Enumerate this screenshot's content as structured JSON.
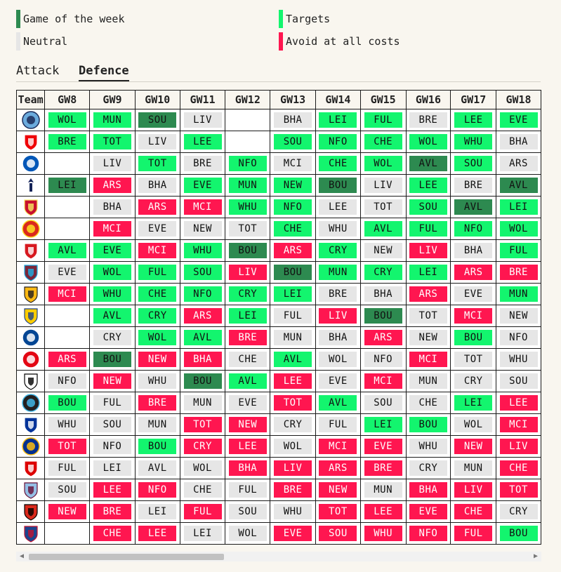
{
  "legend": [
    {
      "label": "Game of the week",
      "color": "#2d8a50"
    },
    {
      "label": "Targets",
      "color": "#13f56e"
    },
    {
      "label": "Neutral",
      "color": "#e6e6e6"
    },
    {
      "label": "Avoid at all costs",
      "color": "#ff1650"
    }
  ],
  "tabs": [
    {
      "label": "Attack",
      "active": false
    },
    {
      "label": "Defence",
      "active": true
    }
  ],
  "table": {
    "team_header": "Team",
    "gameweeks": [
      "GW8",
      "GW9",
      "GW10",
      "GW11",
      "GW12",
      "GW13",
      "GW14",
      "GW15",
      "GW16",
      "GW17",
      "GW18"
    ],
    "rows": [
      {
        "crest": "man-city-crest",
        "cells": [
          [
            "WOL",
            "target"
          ],
          [
            "MUN",
            "target"
          ],
          [
            "SOU",
            "gotw"
          ],
          [
            "LIV",
            "neutral"
          ],
          [
            "",
            ""
          ],
          [
            "BHA",
            "neutral"
          ],
          [
            "LEI",
            "target"
          ],
          [
            "FUL",
            "target"
          ],
          [
            "BRE",
            "neutral"
          ],
          [
            "LEE",
            "target"
          ],
          [
            "EVE",
            "target"
          ]
        ]
      },
      {
        "crest": "arsenal-crest",
        "cells": [
          [
            "BRE",
            "target"
          ],
          [
            "TOT",
            "target"
          ],
          [
            "LIV",
            "neutral"
          ],
          [
            "LEE",
            "target"
          ],
          [
            "",
            ""
          ],
          [
            "SOU",
            "target"
          ],
          [
            "NFO",
            "target"
          ],
          [
            "CHE",
            "target"
          ],
          [
            "WOL",
            "target"
          ],
          [
            "WHU",
            "target"
          ],
          [
            "BHA",
            "neutral"
          ]
        ]
      },
      {
        "crest": "brighton-crest",
        "cells": [
          [
            "",
            ""
          ],
          [
            "LIV",
            "neutral"
          ],
          [
            "TOT",
            "target"
          ],
          [
            "BRE",
            "neutral"
          ],
          [
            "NFO",
            "target"
          ],
          [
            "MCI",
            "neutral"
          ],
          [
            "CHE",
            "target"
          ],
          [
            "WOL",
            "target"
          ],
          [
            "AVL",
            "gotw"
          ],
          [
            "SOU",
            "target"
          ],
          [
            "ARS",
            "neutral"
          ]
        ]
      },
      {
        "crest": "tottenham-crest",
        "cells": [
          [
            "LEI",
            "gotw"
          ],
          [
            "ARS",
            "avoid"
          ],
          [
            "BHA",
            "neutral"
          ],
          [
            "EVE",
            "target"
          ],
          [
            "MUN",
            "target"
          ],
          [
            "NEW",
            "target"
          ],
          [
            "BOU",
            "gotw"
          ],
          [
            "LIV",
            "neutral"
          ],
          [
            "LEE",
            "target"
          ],
          [
            "BRE",
            "neutral"
          ],
          [
            "AVL",
            "gotw"
          ]
        ]
      },
      {
        "crest": "liverpool-crest",
        "cells": [
          [
            "",
            ""
          ],
          [
            "BHA",
            "neutral"
          ],
          [
            "ARS",
            "avoid"
          ],
          [
            "MCI",
            "avoid"
          ],
          [
            "WHU",
            "target"
          ],
          [
            "NFO",
            "target"
          ],
          [
            "LEE",
            "neutral"
          ],
          [
            "TOT",
            "neutral"
          ],
          [
            "SOU",
            "target"
          ],
          [
            "AVL",
            "gotw"
          ],
          [
            "LEI",
            "target"
          ]
        ]
      },
      {
        "crest": "man-utd-crest",
        "cells": [
          [
            "",
            ""
          ],
          [
            "MCI",
            "avoid"
          ],
          [
            "EVE",
            "neutral"
          ],
          [
            "NEW",
            "neutral"
          ],
          [
            "TOT",
            "neutral"
          ],
          [
            "CHE",
            "target"
          ],
          [
            "WHU",
            "neutral"
          ],
          [
            "AVL",
            "target"
          ],
          [
            "FUL",
            "target"
          ],
          [
            "NFO",
            "target"
          ],
          [
            "WOL",
            "target"
          ]
        ]
      },
      {
        "crest": "southampton-crest",
        "cells": [
          [
            "AVL",
            "target"
          ],
          [
            "EVE",
            "target"
          ],
          [
            "MCI",
            "avoid"
          ],
          [
            "WHU",
            "target"
          ],
          [
            "BOU",
            "gotw"
          ],
          [
            "ARS",
            "avoid"
          ],
          [
            "CRY",
            "target"
          ],
          [
            "NEW",
            "neutral"
          ],
          [
            "LIV",
            "avoid"
          ],
          [
            "BHA",
            "neutral"
          ],
          [
            "FUL",
            "target"
          ]
        ]
      },
      {
        "crest": "west-ham-crest",
        "cells": [
          [
            "EVE",
            "neutral"
          ],
          [
            "WOL",
            "target"
          ],
          [
            "FUL",
            "target"
          ],
          [
            "SOU",
            "target"
          ],
          [
            "LIV",
            "avoid"
          ],
          [
            "BOU",
            "gotw"
          ],
          [
            "MUN",
            "target"
          ],
          [
            "CRY",
            "target"
          ],
          [
            "LEI",
            "target"
          ],
          [
            "ARS",
            "avoid"
          ],
          [
            "BRE",
            "avoid"
          ]
        ]
      },
      {
        "crest": "wolves-crest",
        "cells": [
          [
            "MCI",
            "avoid"
          ],
          [
            "WHU",
            "target"
          ],
          [
            "CHE",
            "target"
          ],
          [
            "NFO",
            "target"
          ],
          [
            "CRY",
            "target"
          ],
          [
            "LEI",
            "target"
          ],
          [
            "BRE",
            "neutral"
          ],
          [
            "BHA",
            "neutral"
          ],
          [
            "ARS",
            "avoid"
          ],
          [
            "EVE",
            "neutral"
          ],
          [
            "MUN",
            "target"
          ]
        ]
      },
      {
        "crest": "leeds-crest",
        "cells": [
          [
            "",
            ""
          ],
          [
            "AVL",
            "target"
          ],
          [
            "CRY",
            "target"
          ],
          [
            "ARS",
            "avoid"
          ],
          [
            "LEI",
            "target"
          ],
          [
            "FUL",
            "neutral"
          ],
          [
            "LIV",
            "avoid"
          ],
          [
            "BOU",
            "gotw"
          ],
          [
            "TOT",
            "neutral"
          ],
          [
            "MCI",
            "avoid"
          ],
          [
            "NEW",
            "neutral"
          ]
        ]
      },
      {
        "crest": "chelsea-crest",
        "cells": [
          [
            "",
            ""
          ],
          [
            "CRY",
            "neutral"
          ],
          [
            "WOL",
            "target"
          ],
          [
            "AVL",
            "target"
          ],
          [
            "BRE",
            "avoid"
          ],
          [
            "MUN",
            "neutral"
          ],
          [
            "BHA",
            "neutral"
          ],
          [
            "ARS",
            "avoid"
          ],
          [
            "NEW",
            "neutral"
          ],
          [
            "BOU",
            "target"
          ],
          [
            "NFO",
            "neutral"
          ]
        ]
      },
      {
        "crest": "brentford-crest",
        "cells": [
          [
            "ARS",
            "avoid"
          ],
          [
            "BOU",
            "gotw"
          ],
          [
            "NEW",
            "avoid"
          ],
          [
            "BHA",
            "avoid"
          ],
          [
            "CHE",
            "neutral"
          ],
          [
            "AVL",
            "target"
          ],
          [
            "WOL",
            "neutral"
          ],
          [
            "NFO",
            "neutral"
          ],
          [
            "MCI",
            "avoid"
          ],
          [
            "TOT",
            "neutral"
          ],
          [
            "WHU",
            "neutral"
          ]
        ]
      },
      {
        "crest": "fulham-crest",
        "cells": [
          [
            "NFO",
            "neutral"
          ],
          [
            "NEW",
            "avoid"
          ],
          [
            "WHU",
            "neutral"
          ],
          [
            "BOU",
            "gotw"
          ],
          [
            "AVL",
            "target"
          ],
          [
            "LEE",
            "avoid"
          ],
          [
            "EVE",
            "neutral"
          ],
          [
            "MCI",
            "avoid"
          ],
          [
            "MUN",
            "neutral"
          ],
          [
            "CRY",
            "neutral"
          ],
          [
            "SOU",
            "neutral"
          ]
        ]
      },
      {
        "crest": "newcastle-crest",
        "cells": [
          [
            "BOU",
            "target"
          ],
          [
            "FUL",
            "neutral"
          ],
          [
            "BRE",
            "avoid"
          ],
          [
            "MUN",
            "neutral"
          ],
          [
            "EVE",
            "neutral"
          ],
          [
            "TOT",
            "avoid"
          ],
          [
            "AVL",
            "target"
          ],
          [
            "SOU",
            "neutral"
          ],
          [
            "CHE",
            "neutral"
          ],
          [
            "LEI",
            "target"
          ],
          [
            "LEE",
            "avoid"
          ]
        ]
      },
      {
        "crest": "everton-crest",
        "cells": [
          [
            "WHU",
            "neutral"
          ],
          [
            "SOU",
            "neutral"
          ],
          [
            "MUN",
            "neutral"
          ],
          [
            "TOT",
            "avoid"
          ],
          [
            "NEW",
            "avoid"
          ],
          [
            "CRY",
            "neutral"
          ],
          [
            "FUL",
            "neutral"
          ],
          [
            "LEI",
            "target"
          ],
          [
            "BOU",
            "target"
          ],
          [
            "WOL",
            "neutral"
          ],
          [
            "MCI",
            "avoid"
          ]
        ]
      },
      {
        "crest": "leicester-crest",
        "cells": [
          [
            "TOT",
            "avoid"
          ],
          [
            "NFO",
            "neutral"
          ],
          [
            "BOU",
            "target"
          ],
          [
            "CRY",
            "avoid"
          ],
          [
            "LEE",
            "avoid"
          ],
          [
            "WOL",
            "neutral"
          ],
          [
            "MCI",
            "avoid"
          ],
          [
            "EVE",
            "avoid"
          ],
          [
            "WHU",
            "neutral"
          ],
          [
            "NEW",
            "avoid"
          ],
          [
            "LIV",
            "avoid"
          ]
        ]
      },
      {
        "crest": "nottingham-forest-crest",
        "cells": [
          [
            "FUL",
            "neutral"
          ],
          [
            "LEI",
            "neutral"
          ],
          [
            "AVL",
            "neutral"
          ],
          [
            "WOL",
            "neutral"
          ],
          [
            "BHA",
            "avoid"
          ],
          [
            "LIV",
            "avoid"
          ],
          [
            "ARS",
            "avoid"
          ],
          [
            "BRE",
            "avoid"
          ],
          [
            "CRY",
            "neutral"
          ],
          [
            "MUN",
            "neutral"
          ],
          [
            "CHE",
            "avoid"
          ]
        ]
      },
      {
        "crest": "aston-villa-crest",
        "cells": [
          [
            "SOU",
            "neutral"
          ],
          [
            "LEE",
            "avoid"
          ],
          [
            "NFO",
            "avoid"
          ],
          [
            "CHE",
            "neutral"
          ],
          [
            "FUL",
            "neutral"
          ],
          [
            "BRE",
            "avoid"
          ],
          [
            "NEW",
            "avoid"
          ],
          [
            "MUN",
            "neutral"
          ],
          [
            "BHA",
            "avoid"
          ],
          [
            "LIV",
            "avoid"
          ],
          [
            "TOT",
            "avoid"
          ]
        ]
      },
      {
        "crest": "bournemouth-crest",
        "cells": [
          [
            "NEW",
            "avoid"
          ],
          [
            "BRE",
            "avoid"
          ],
          [
            "LEI",
            "neutral"
          ],
          [
            "FUL",
            "avoid"
          ],
          [
            "SOU",
            "neutral"
          ],
          [
            "WHU",
            "neutral"
          ],
          [
            "TOT",
            "avoid"
          ],
          [
            "LEE",
            "avoid"
          ],
          [
            "EVE",
            "avoid"
          ],
          [
            "CHE",
            "avoid"
          ],
          [
            "CRY",
            "neutral"
          ]
        ]
      },
      {
        "crest": "crystal-palace-crest",
        "cells": [
          [
            "",
            ""
          ],
          [
            "CHE",
            "avoid"
          ],
          [
            "LEE",
            "avoid"
          ],
          [
            "LEI",
            "neutral"
          ],
          [
            "WOL",
            "neutral"
          ],
          [
            "EVE",
            "avoid"
          ],
          [
            "SOU",
            "avoid"
          ],
          [
            "WHU",
            "avoid"
          ],
          [
            "NFO",
            "avoid"
          ],
          [
            "FUL",
            "avoid"
          ],
          [
            "BOU",
            "target"
          ]
        ]
      }
    ]
  }
}
